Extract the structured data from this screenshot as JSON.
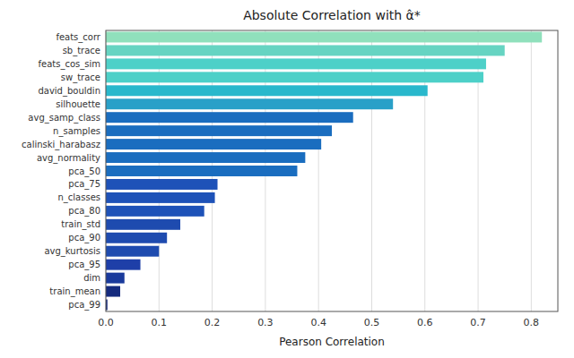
{
  "chart_data": {
    "type": "bar",
    "orientation": "horizontal",
    "title": "Absolute Correlation with α̂*",
    "xlabel": "Pearson Correlation",
    "categories": [
      "pca_99",
      "train_mean",
      "dim",
      "pca_95",
      "avg_kurtosis",
      "pca_90",
      "train_std",
      "pca_80",
      "n_classes",
      "pca_75",
      "pca_50",
      "avg_normality",
      "calinski_harabasz",
      "n_samples",
      "avg_samp_class",
      "silhouette",
      "david_bouldin",
      "sw_trace",
      "feats_cos_sim",
      "sb_trace",
      "feats_corr"
    ],
    "values": [
      0.003,
      0.027,
      0.035,
      0.065,
      0.1,
      0.115,
      0.14,
      0.185,
      0.205,
      0.21,
      0.36,
      0.375,
      0.405,
      0.425,
      0.465,
      0.54,
      0.605,
      0.71,
      0.715,
      0.75,
      0.82
    ],
    "colors": [
      "#152B7E",
      "#152B7E",
      "#1A3A9C",
      "#1E3FA8",
      "#1E4BAF",
      "#1E4BAF",
      "#1E4BAF",
      "#1E52B8",
      "#1E52B8",
      "#1E52B8",
      "#1A6DBF",
      "#1A6DBF",
      "#1A6DBF",
      "#1A6DBF",
      "#1A6DBF",
      "#29A0C8",
      "#29B8CC",
      "#4DD0C8",
      "#4DD0C8",
      "#66D4C2",
      "#90E0BC"
    ],
    "xlim": [
      0,
      0.85
    ],
    "xticks": [
      {
        "value": 0.0,
        "label": "0.0"
      },
      0.1,
      0.2,
      0.3,
      0.4,
      0.5,
      0.6,
      0.7,
      0.8
    ],
    "grid": true
  }
}
